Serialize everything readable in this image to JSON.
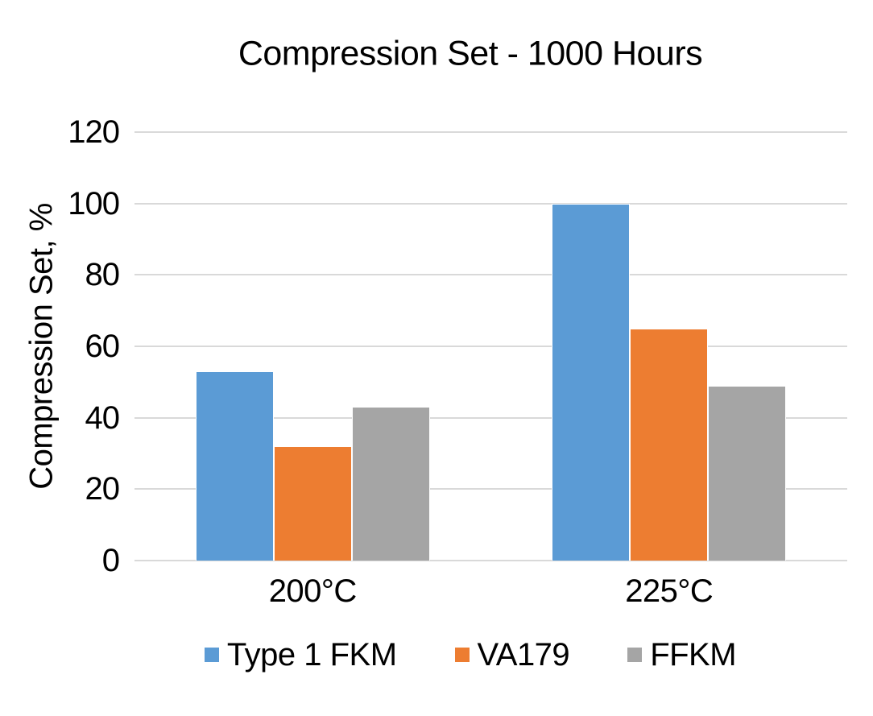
{
  "chart_data": {
    "type": "bar",
    "title": "Compression Set - 1000 Hours",
    "ylabel": "Compression Set, %",
    "xlabel": "",
    "categories": [
      "200°C",
      "225°C"
    ],
    "series": [
      {
        "name": "Type 1 FKM",
        "color": "#5B9BD5",
        "values": [
          53,
          100
        ]
      },
      {
        "name": "VA179",
        "color": "#ED7D31",
        "values": [
          32,
          65
        ]
      },
      {
        "name": "FFKM",
        "color": "#A5A5A5",
        "values": [
          43,
          49
        ]
      }
    ],
    "ylim": [
      0,
      120
    ],
    "yticks": [
      0,
      20,
      40,
      60,
      80,
      100,
      120
    ],
    "grid": "horizontal",
    "gridline_color": "#D9D9D9",
    "legend_position": "bottom",
    "background": "#FFFFFF"
  }
}
